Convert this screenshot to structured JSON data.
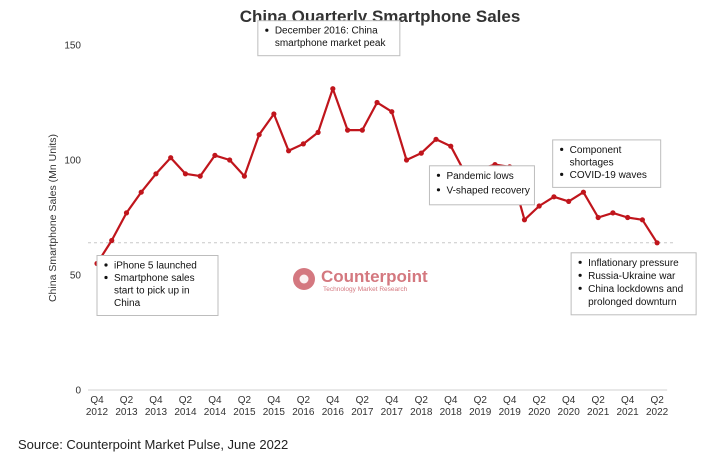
{
  "chart_data": {
    "type": "line",
    "title": "China Quarterly Smartphone Sales",
    "xlabel": "",
    "ylabel": "China Smartphone Sales (Mn Units)",
    "ylim": [
      0,
      150
    ],
    "yticks": [
      0,
      50,
      100,
      150
    ],
    "grid": false,
    "series_color": "#c0151c",
    "reference_line_value": 64,
    "categories": [
      "Q4 2012",
      "Q1 2013",
      "Q2 2013",
      "Q3 2013",
      "Q4 2013",
      "Q1 2014",
      "Q2 2014",
      "Q3 2014",
      "Q4 2014",
      "Q1 2015",
      "Q2 2015",
      "Q3 2015",
      "Q4 2015",
      "Q1 2016",
      "Q2 2016",
      "Q3 2016",
      "Q4 2016",
      "Q1 2017",
      "Q2 2017",
      "Q3 2017",
      "Q4 2017",
      "Q1 2018",
      "Q2 2018",
      "Q3 2018",
      "Q4 2018",
      "Q1 2019",
      "Q2 2019",
      "Q3 2019",
      "Q4 2019",
      "Q1 2020",
      "Q2 2020",
      "Q3 2020",
      "Q4 2020",
      "Q1 2021",
      "Q2 2021",
      "Q3 2021",
      "Q4 2021",
      "Q1 2022",
      "Q2 2022"
    ],
    "x_tick_labels": [
      {
        "q": "Q4",
        "y": "2012"
      },
      {
        "q": "Q2",
        "y": "2013"
      },
      {
        "q": "Q4",
        "y": "2013"
      },
      {
        "q": "Q2",
        "y": "2014"
      },
      {
        "q": "Q4",
        "y": "2014"
      },
      {
        "q": "Q2",
        "y": "2015"
      },
      {
        "q": "Q4",
        "y": "2015"
      },
      {
        "q": "Q2",
        "y": "2016"
      },
      {
        "q": "Q4",
        "y": "2016"
      },
      {
        "q": "Q2",
        "y": "2017"
      },
      {
        "q": "Q4",
        "y": "2017"
      },
      {
        "q": "Q2",
        "y": "2018"
      },
      {
        "q": "Q4",
        "y": "2018"
      },
      {
        "q": "Q2",
        "y": "2019"
      },
      {
        "q": "Q4",
        "y": "2019"
      },
      {
        "q": "Q2",
        "y": "2020"
      },
      {
        "q": "Q4",
        "y": "2020"
      },
      {
        "q": "Q2",
        "y": "2021"
      },
      {
        "q": "Q4",
        "y": "2021"
      },
      {
        "q": "Q2",
        "y": "2022"
      }
    ],
    "values": [
      55,
      65,
      77,
      86,
      94,
      101,
      94,
      93,
      102,
      100,
      93,
      111,
      120,
      104,
      107,
      112,
      131,
      113,
      113,
      125,
      121,
      100,
      103,
      109,
      106,
      94,
      96,
      98,
      97,
      74,
      80,
      84,
      82,
      86,
      75,
      77,
      75,
      74,
      64
    ],
    "annotations": [
      {
        "anchor": "Q4 2012",
        "lines": [
          "iPhone 5 launched",
          "Smartphone sales",
          "start to pick up in",
          "China"
        ],
        "bullets": [
          0,
          1
        ]
      },
      {
        "anchor": "Q4 2016",
        "lines": [
          "December 2016: China",
          "smartphone market peak"
        ],
        "bullets": [
          0
        ]
      },
      {
        "anchor": "Q1 2020",
        "lines": [
          "Pandemic lows",
          "V-shaped recovery"
        ],
        "bullets": [
          0,
          1
        ]
      },
      {
        "anchor": "Q4 2020",
        "lines": [
          "Component",
          "shortages",
          "COVID-19 waves"
        ],
        "bullets": [
          0,
          2
        ]
      },
      {
        "anchor": "Q2 2022",
        "lines": [
          "Inflationary pressure",
          "Russia-Ukraine war",
          "China lockdowns and",
          "prolonged downturn"
        ],
        "bullets": [
          0,
          1,
          2
        ]
      }
    ]
  },
  "logo": {
    "name": "Counterpoint",
    "tagline": "Technology Market Research",
    "color": "#c64b55"
  },
  "source": "Source: Counterpoint Market Pulse, June 2022"
}
